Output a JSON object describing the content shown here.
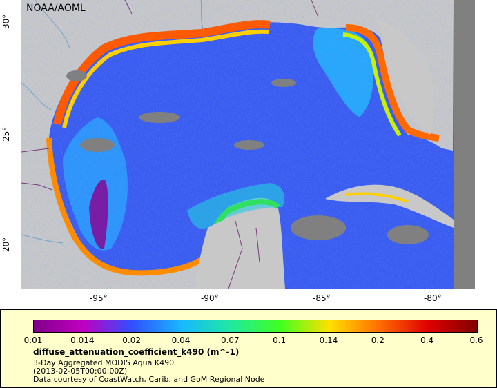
{
  "map": {
    "credit": "NOAA/AOML",
    "lat_ticks": [
      "30°",
      "25°",
      "20°"
    ],
    "lon_ticks": [
      "-95°",
      "-90°",
      "-85°",
      "-80°"
    ],
    "region": "Gulf of Mexico",
    "colors": {
      "land": "#c8c8c8",
      "cloud_nodata": "#808080",
      "borders": "#7a3a7a",
      "rivers": "#6fa4c8"
    }
  },
  "legend": {
    "colorbar_ticks": [
      "0.01",
      "0.014",
      "0.02",
      "0.04",
      "0.07",
      "0.1",
      "0.14",
      "0.2",
      "0.4",
      "0.6"
    ],
    "colorbar_colors": [
      "#80008a",
      "#c000c0",
      "#3050ff",
      "#18b8ff",
      "#20e8a0",
      "#40ff20",
      "#ffe000",
      "#ff7000",
      "#e00000",
      "#800000"
    ],
    "variable": "diffuse_attenuation_coefficient_k490 (m^-1)",
    "dataset": "3-Day Aggregated MODIS Aqua K490",
    "time": "(2013-02-05T00:00:00Z)",
    "courtesy": "Data courtesy of CoastWatch, Carib. and GoM Regional Node"
  }
}
